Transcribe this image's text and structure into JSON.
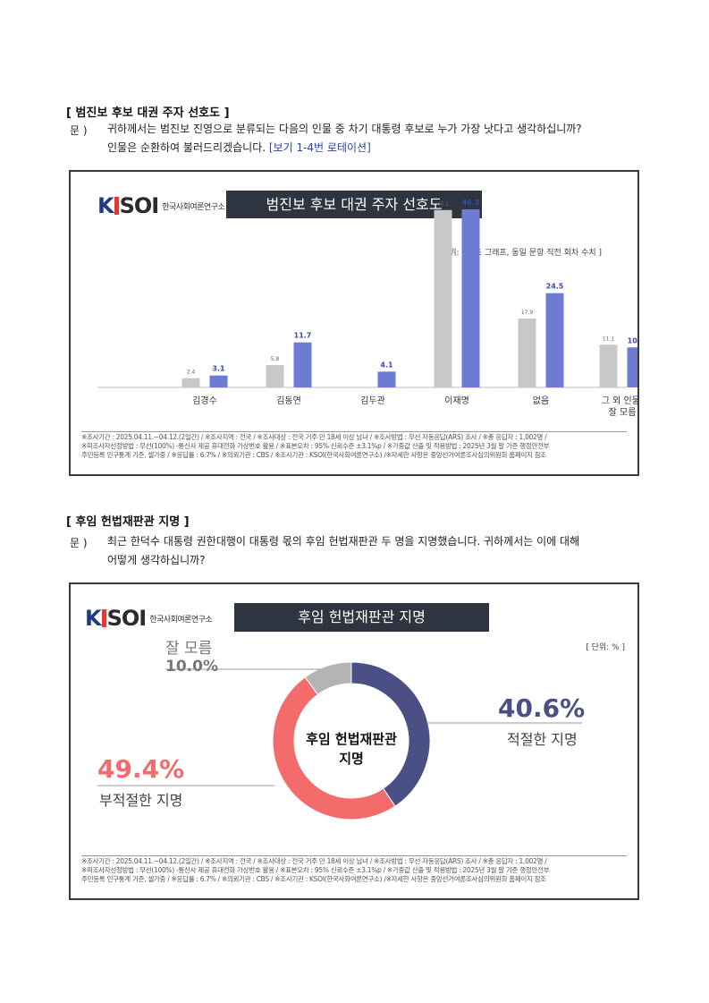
{
  "section1": {
    "title": "[ 범진보 후보 대권 주자 선호도 ]",
    "q_label": "문 )",
    "q_line1": "귀하께서는 범진보 진영으로 분류되는 다음의 인물 중 차기 대통령 후보로 누가 가장 낫다고 생각하십니까?",
    "q_line2": "인물은 순환하여 불러드리겠습니다.",
    "q_note": "[보기 1-4번 로테이션]"
  },
  "chart1": {
    "logo_k": "K",
    "logo_soi": "SOI",
    "logo_org": "한국사회여론연구소",
    "title": "범진보 후보 대권 주자 선호도",
    "unit": "[ 단위: %, 초 그래프, 동일 문항 직전 회차 수치 ]"
  },
  "chart_data": [
    {
      "type": "bar",
      "title": "범진보 후보 대권 주자 선호도",
      "categories": [
        "김경수",
        "김동연",
        "김두관",
        "이재명",
        "없음",
        "그 외 인물/ 잘 모름"
      ],
      "category_lines": [
        [
          "김경수"
        ],
        [
          "김동연"
        ],
        [
          "김두관"
        ],
        [
          "이재명"
        ],
        [
          "없음"
        ],
        [
          "그 외 인물/",
          "잘 모름"
        ]
      ],
      "series": [
        {
          "values": [
            2.4,
            5.8,
            null,
            46.1,
            17.9,
            11.1
          ],
          "labels": [
            "2.4",
            "5.8",
            "",
            "46.1",
            "17.9",
            "11.1"
          ],
          "color": "#c8c8c8"
        },
        {
          "values": [
            3.1,
            11.7,
            4.1,
            46.3,
            24.5,
            10.4
          ],
          "labels": [
            "3.1",
            "11.7",
            "4.1",
            "46.3",
            "24.5",
            "10.4"
          ],
          "color": "#6e7bd3"
        }
      ],
      "ylim": [
        0,
        50
      ],
      "grid": false
    },
    {
      "type": "pie",
      "title": "후임 헌법재판관 지명",
      "center_label": [
        "후임 헌법재판관",
        "지명"
      ],
      "slices": [
        {
          "name": "적절한 지명",
          "value": 40.6,
          "label": "40.6%",
          "color": "#4a4f85"
        },
        {
          "name": "부적절한 지명",
          "value": 49.4,
          "label": "49.4%",
          "color": "#f36b6b"
        },
        {
          "name": "잘 모름",
          "value": 10.0,
          "label": "10.0%",
          "color": "#b4b4b4"
        }
      ]
    }
  ],
  "footer": {
    "line1": "※조사기간 : 2025.04.11.~04.12.(2일간) / ※조사지역 : 전국 / ※조사대상 : 전국 거주 만 18세 이상 남녀 / ※조사방법 : 무선 자동응답(ARS) 조사 / ※총 응답자 : 1,002명 /",
    "line2": "※피조사자선정방법 : 무선(100%) -통신사 제공 휴대전화 가상번호 활용 / ※표본오차 : 95% 신뢰수준 ±3.1%p / ※가중값 산출 및 적용방법 : 2025년 3월 말 기준 행정안전부",
    "line3": "주민등록 인구통계 기준, 셀가중 / ※응답률 : 6.7% / ※의뢰기관 : CBS / ※조사기관 : KSOI(한국사회여론연구소) /※자세한 사항은 중앙선거여론조사심의위원회 홈페이지 참조"
  },
  "section2": {
    "title": "[ 후임 헌법재판관 지명 ]",
    "q_label": "문 )",
    "q_line1": "최근 한덕수 대통령 권한대행이 대통령 몫의 후임 헌법재판관 두 명을 지명했습니다. 귀하께서는 이에 대해",
    "q_line2": "어떻게 생각하십니까?"
  },
  "chart2": {
    "logo_k": "K",
    "logo_soi": "SOI",
    "logo_org": "한국사회여론연구소",
    "title": "후임 헌법재판관 지명",
    "unit": "[ 단위: % ]",
    "label_pct_unknown": "10.0%",
    "label_name_unknown": "잘 모름",
    "label_pct_appropriate": "40.6%",
    "label_name_appropriate": "적절한 지명",
    "label_pct_inappropriate": "49.4%",
    "label_name_inappropriate": "부적절한 지명",
    "center_line1": "후임 헌법재판관",
    "center_line2": "지명"
  },
  "colors": {
    "prev_bar": "#c8c8c8",
    "curr_bar": "#6e7bd3",
    "title_bg": "#2e3440",
    "pct_label": "#4a4f85",
    "pct_red": "#f36b6b"
  }
}
